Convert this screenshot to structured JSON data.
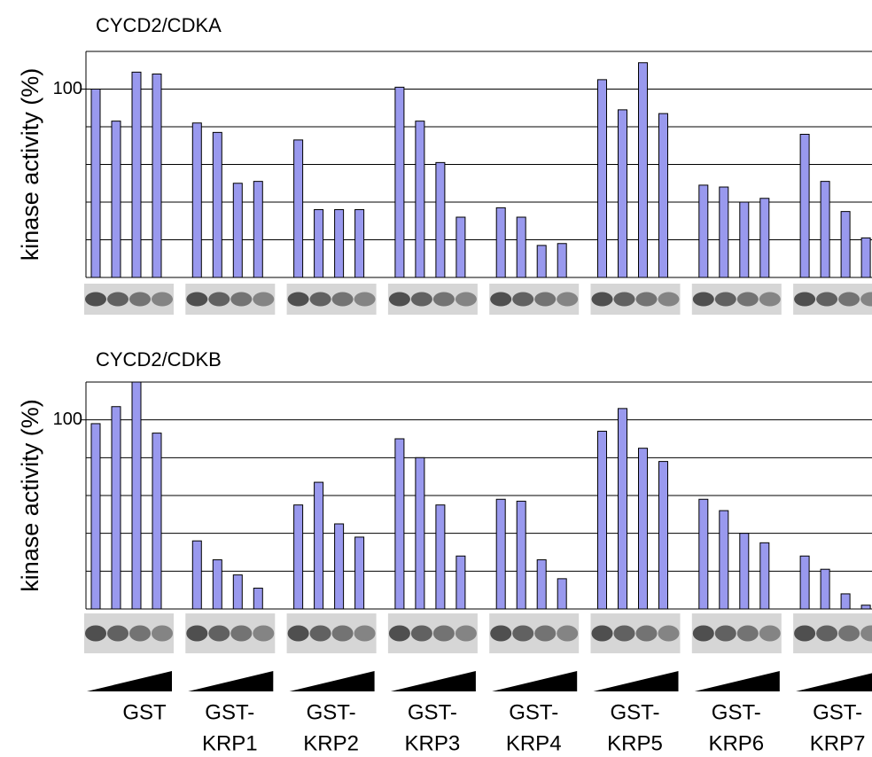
{
  "chart_data": [
    {
      "type": "bar",
      "title": "CYCD2/CDKA",
      "y_label": "kinase activity (%)",
      "color": "#9999ee",
      "ylim": [
        0,
        120
      ],
      "yticks": [
        100
      ],
      "grid": [
        20,
        40,
        60,
        80,
        100,
        120
      ],
      "values": [
        [
          100,
          83,
          109,
          108
        ],
        [
          82,
          77,
          50,
          51
        ],
        [
          73,
          36,
          36,
          36
        ],
        [
          101,
          83,
          61,
          32
        ],
        [
          37,
          32,
          17,
          18
        ],
        [
          105,
          89,
          114,
          87
        ],
        [
          49,
          48,
          40,
          42
        ],
        [
          76,
          51,
          35,
          21
        ]
      ]
    },
    {
      "type": "bar",
      "title": "CYCD2/CDKB",
      "y_label": "kinase activity (%)",
      "color": "#9999ee",
      "ylim": [
        0,
        120
      ],
      "yticks": [
        100
      ],
      "grid": [
        20,
        40,
        60,
        80,
        100,
        120
      ],
      "values": [
        [
          98,
          107,
          120,
          93
        ],
        [
          36,
          26,
          18,
          11
        ],
        [
          55,
          67,
          45,
          38
        ],
        [
          90,
          80,
          55,
          28
        ],
        [
          58,
          57,
          26,
          16
        ],
        [
          94,
          106,
          85,
          78
        ],
        [
          58,
          52,
          40,
          35
        ],
        [
          28,
          21,
          8,
          2
        ]
      ]
    }
  ],
  "group_labels": [
    [
      "GST"
    ],
    [
      "GST-",
      "KRP1"
    ],
    [
      "GST-",
      "KRP2"
    ],
    [
      "GST-",
      "KRP3"
    ],
    [
      "GST-",
      "KRP4"
    ],
    [
      "GST-",
      "KRP5"
    ],
    [
      "GST-",
      "KRP6"
    ],
    [
      "GST-",
      "KRP7"
    ]
  ]
}
